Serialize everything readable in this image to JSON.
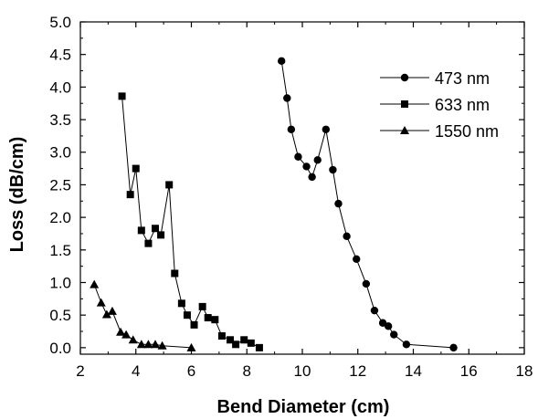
{
  "chart_data": {
    "type": "line",
    "title": "",
    "xlabel": "Bend Diameter (cm)",
    "ylabel": "Loss (dB/cm)",
    "xlim": [
      2,
      18
    ],
    "ylim": [
      -0.1,
      5.0
    ],
    "xticks": [
      2,
      4,
      6,
      8,
      10,
      12,
      14,
      16,
      18
    ],
    "xtick_labels": [
      "2",
      "4",
      "6",
      "8",
      "10",
      "12",
      "14",
      "16",
      "18"
    ],
    "yticks": [
      0.0,
      0.5,
      1.0,
      1.5,
      2.0,
      2.5,
      3.0,
      3.5,
      4.0,
      4.5,
      5.0
    ],
    "ytick_labels": [
      "0.0",
      "0.5",
      "1.0",
      "1.5",
      "2.0",
      "2.5",
      "3.0",
      "3.5",
      "4.0",
      "4.5",
      "5.0"
    ],
    "grid": false,
    "legend_position": "top-right",
    "series": [
      {
        "name": "473 nm",
        "marker": "circle",
        "x": [
          9.25,
          9.45,
          9.6,
          9.85,
          10.15,
          10.35,
          10.55,
          10.85,
          11.1,
          11.3,
          11.6,
          11.95,
          12.3,
          12.6,
          12.9,
          13.1,
          13.3,
          13.75,
          15.45
        ],
        "y": [
          4.4,
          3.83,
          3.35,
          2.93,
          2.78,
          2.62,
          2.88,
          3.35,
          2.73,
          2.21,
          1.71,
          1.36,
          0.98,
          0.57,
          0.38,
          0.33,
          0.2,
          0.05,
          0.0
        ]
      },
      {
        "name": "633 nm",
        "marker": "square",
        "x": [
          3.5,
          3.8,
          4.0,
          4.2,
          4.45,
          4.7,
          4.9,
          5.2,
          5.4,
          5.65,
          5.85,
          6.1,
          6.4,
          6.6,
          6.85,
          7.1,
          7.4,
          7.6,
          7.9,
          8.15,
          8.45
        ],
        "y": [
          3.86,
          2.35,
          2.75,
          1.8,
          1.6,
          1.83,
          1.73,
          2.5,
          1.14,
          0.68,
          0.5,
          0.35,
          0.63,
          0.46,
          0.43,
          0.18,
          0.12,
          0.05,
          0.12,
          0.07,
          0.0
        ]
      },
      {
        "name": "1550 nm",
        "marker": "triangle",
        "x": [
          2.5,
          2.75,
          2.95,
          3.15,
          3.45,
          3.65,
          3.9,
          4.2,
          4.45,
          4.7,
          4.95,
          6.0
        ],
        "y": [
          0.97,
          0.69,
          0.51,
          0.56,
          0.24,
          0.2,
          0.12,
          0.05,
          0.05,
          0.05,
          0.03,
          0.0
        ]
      }
    ]
  }
}
